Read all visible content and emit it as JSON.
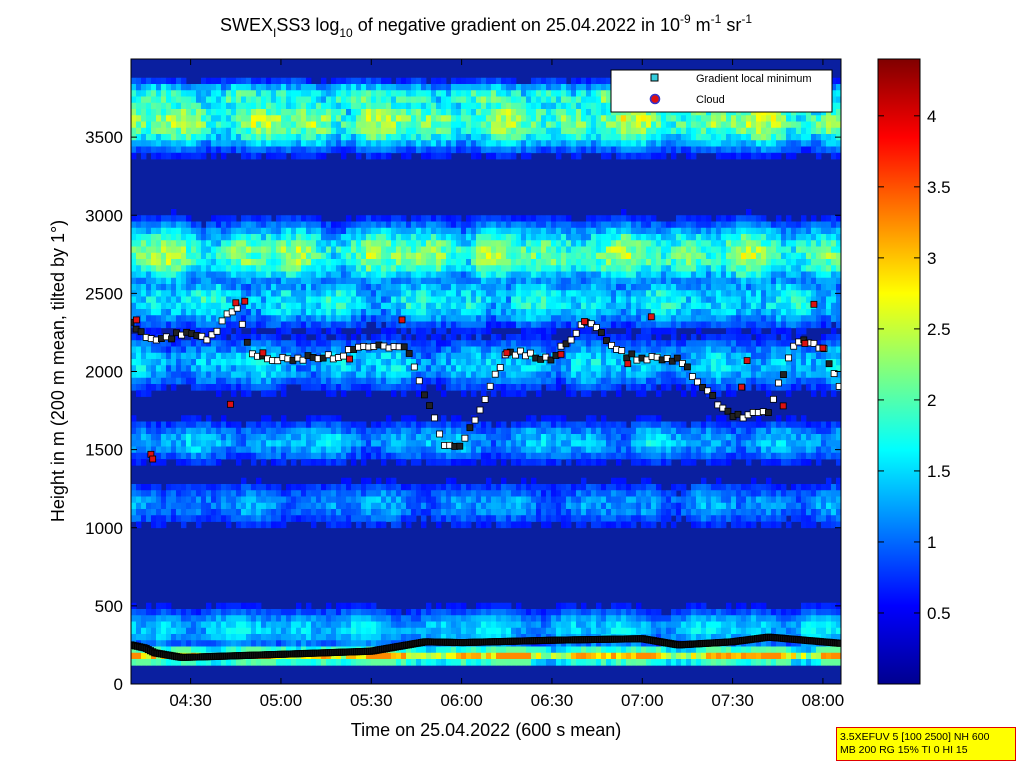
{
  "chart_data": {
    "type": "heatmap",
    "title": {
      "main": "SWEX",
      "sub1": "I",
      "mid": "SS3 log",
      "sub2": "10",
      "rest": " of negative gradient on 25.04.2022 in 10",
      "sup1": "-9",
      "unit1": " m",
      "sup2": "-1",
      "unit2": " sr",
      "sup3": "-1"
    },
    "xlabel": "Time on 25.04.2022 (600 s mean)",
    "ylabel": "Height in m (200 m mean, tilted by 1°)",
    "x_ticks": [
      "04:30",
      "05:00",
      "05:30",
      "06:00",
      "06:30",
      "07:00",
      "07:30",
      "08:00"
    ],
    "x_tick_hours": [
      4.5,
      5.0,
      5.5,
      6.0,
      6.5,
      7.0,
      7.5,
      8.0
    ],
    "xlim_hours": [
      4.17,
      8.1
    ],
    "y_ticks": [
      "0",
      "500",
      "1000",
      "1500",
      "2000",
      "2500",
      "3000",
      "3500"
    ],
    "y_tick_values": [
      0,
      500,
      1000,
      1500,
      2000,
      2500,
      3000,
      3500
    ],
    "ylim": [
      0,
      4000
    ],
    "colorbar": {
      "ticks": [
        "0.5",
        "1",
        "1.5",
        "2",
        "2.5",
        "3",
        "3.5",
        "4"
      ],
      "tick_values": [
        0.5,
        1,
        1.5,
        2,
        2.5,
        3,
        3.5,
        4
      ],
      "range": [
        0,
        4.4
      ],
      "colormap": "jet"
    },
    "legend": {
      "position": "top-right",
      "entries": [
        {
          "label": "Gradient local minimum",
          "color": "#33ccdd"
        },
        {
          "label": "Cloud",
          "color": "#dd1111"
        }
      ]
    },
    "bands": [
      {
        "center": 3600,
        "width": 200,
        "level": 2.5,
        "strength": 0.6
      },
      {
        "center": 3750,
        "width": 120,
        "level": 2.3,
        "strength": 0.5
      },
      {
        "center": 2750,
        "width": 220,
        "level": 2.3,
        "strength": 0.65
      },
      {
        "center": 2450,
        "width": 200,
        "level": 2.0,
        "strength": 0.5
      },
      {
        "center": 2050,
        "width": 200,
        "level": 1.8,
        "strength": 0.5
      },
      {
        "center": 1550,
        "width": 160,
        "level": 1.6,
        "strength": 0.55
      },
      {
        "center": 1150,
        "width": 170,
        "level": 1.5,
        "strength": 0.5
      },
      {
        "center": 350,
        "width": 160,
        "level": 1.4,
        "strength": 0.8
      },
      {
        "center": 180,
        "width": 60,
        "level": 2.6,
        "strength": 0.9
      }
    ],
    "markers": {
      "surface_series": [
        {
          "h": 4.17,
          "y": 250
        },
        {
          "h": 4.25,
          "y": 230
        },
        {
          "h": 4.3,
          "y": 200
        },
        {
          "h": 4.45,
          "y": 170
        },
        {
          "h": 4.6,
          "y": 175
        },
        {
          "h": 5.0,
          "y": 190
        },
        {
          "h": 5.5,
          "y": 210
        },
        {
          "h": 5.8,
          "y": 270
        },
        {
          "h": 6.0,
          "y": 265
        },
        {
          "h": 6.5,
          "y": 280
        },
        {
          "h": 7.0,
          "y": 290
        },
        {
          "h": 7.2,
          "y": 250
        },
        {
          "h": 7.5,
          "y": 270
        },
        {
          "h": 7.7,
          "y": 300
        },
        {
          "h": 8.1,
          "y": 260
        }
      ],
      "upper_series": [
        {
          "h": 4.17,
          "y": 2300
        },
        {
          "h": 4.3,
          "y": 2180
        },
        {
          "h": 4.45,
          "y": 2250
        },
        {
          "h": 4.6,
          "y": 2200
        },
        {
          "h": 4.75,
          "y": 2420
        },
        {
          "h": 4.85,
          "y": 2080
        },
        {
          "h": 5.0,
          "y": 2080
        },
        {
          "h": 5.3,
          "y": 2100
        },
        {
          "h": 5.5,
          "y": 2170
        },
        {
          "h": 5.7,
          "y": 2150
        },
        {
          "h": 5.9,
          "y": 1530
        },
        {
          "h": 6.0,
          "y": 1520
        },
        {
          "h": 6.25,
          "y": 2130
        },
        {
          "h": 6.5,
          "y": 2080
        },
        {
          "h": 6.7,
          "y": 2330
        },
        {
          "h": 6.9,
          "y": 2100
        },
        {
          "h": 7.05,
          "y": 2080
        },
        {
          "h": 7.2,
          "y": 2080
        },
        {
          "h": 7.5,
          "y": 1700
        },
        {
          "h": 7.7,
          "y": 1750
        },
        {
          "h": 7.85,
          "y": 2200
        },
        {
          "h": 8.0,
          "y": 2150
        },
        {
          "h": 8.1,
          "y": 1880
        }
      ],
      "clouds": [
        {
          "h": 4.2,
          "y": 2330
        },
        {
          "h": 4.28,
          "y": 1470
        },
        {
          "h": 4.29,
          "y": 1440
        },
        {
          "h": 4.75,
          "y": 2440
        },
        {
          "h": 4.8,
          "y": 2450
        },
        {
          "h": 4.72,
          "y": 1790
        },
        {
          "h": 4.9,
          "y": 2120
        },
        {
          "h": 5.38,
          "y": 2080
        },
        {
          "h": 5.67,
          "y": 2330
        },
        {
          "h": 6.25,
          "y": 2120
        },
        {
          "h": 6.55,
          "y": 2110
        },
        {
          "h": 6.68,
          "y": 2320
        },
        {
          "h": 6.92,
          "y": 2050
        },
        {
          "h": 7.05,
          "y": 2350
        },
        {
          "h": 7.58,
          "y": 2070
        },
        {
          "h": 7.55,
          "y": 1900
        },
        {
          "h": 7.9,
          "y": 2180
        },
        {
          "h": 7.78,
          "y": 1780
        },
        {
          "h": 7.95,
          "y": 2430
        },
        {
          "h": 8.0,
          "y": 2150
        }
      ]
    }
  },
  "info_box": {
    "line1": "3.5XEFUV 5 [100 2500] NH 600",
    "line2": "MB 200 RG 15% TI 0 HI 15"
  }
}
